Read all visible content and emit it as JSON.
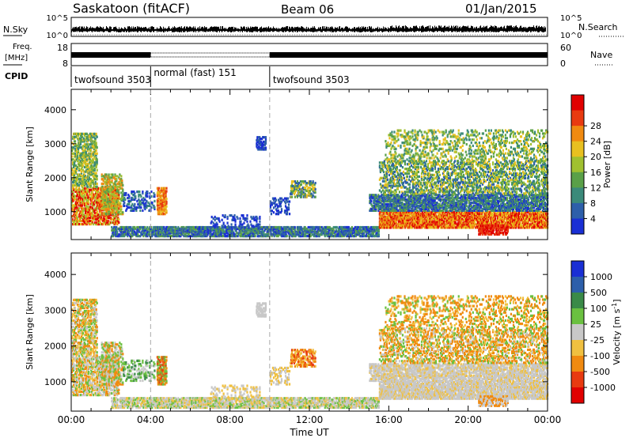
{
  "header": {
    "station": "Saskatoon (fitACF)",
    "beam": "Beam 06",
    "date": "01/Jan/2015"
  },
  "side_labels": {
    "nsky": "N.Sky",
    "nsearch": "N.Search",
    "freq_top": "Freq.",
    "freq_unit": "[MHz]",
    "nave": "Nave",
    "cpid": "CPID"
  },
  "nsky_ticks": {
    "left": [
      "10^5",
      "10^0"
    ],
    "right": [
      "10^5",
      "10^0"
    ]
  },
  "freq_ticks": {
    "left": [
      "18",
      "8"
    ],
    "right": [
      "60",
      "0"
    ]
  },
  "colors": {
    "power": [
      "#1a2fd4",
      "#2d5faa",
      "#3b8a7a",
      "#5aa048",
      "#a0c030",
      "#e8c020",
      "#f08a10",
      "#e83a10",
      "#e00000"
    ],
    "velocity": [
      "#1a2fd4",
      "#2d5faa",
      "#3a8a48",
      "#6ac040",
      "#c8c8c8",
      "#f0c040",
      "#f08a10",
      "#e83a10",
      "#e00000"
    ]
  },
  "chart_data": {
    "type": "heatmap",
    "x_ticks": [
      "00:00",
      "04:00",
      "08:00",
      "12:00",
      "16:00",
      "20:00",
      "00:00"
    ],
    "xlabel": "Time UT",
    "dashed_lines_ut": [
      4,
      10
    ],
    "cpid": [
      {
        "label": "twofsound 3503",
        "start": 0,
        "end": 4
      },
      {
        "label": "normal (fast) 151",
        "start": 4,
        "end": 10
      },
      {
        "label": "twofsound 3503",
        "start": 10,
        "end": 24
      }
    ],
    "panels": [
      {
        "name": "power",
        "ylabel": "Slant Range [km]",
        "yticks": [
          "1000",
          "2000",
          "3000",
          "4000"
        ],
        "ylim": [
          180,
          4600
        ],
        "colorbar_label": "Power [dB]",
        "colorbar_ticks": [
          "4",
          "8",
          "12",
          "16",
          "20",
          "24",
          "28"
        ]
      },
      {
        "name": "velocity",
        "ylabel": "Slant Range [km]",
        "yticks": [
          "1000",
          "2000",
          "3000",
          "4000"
        ],
        "ylim": [
          180,
          4600
        ],
        "colorbar_label": "Velocity [m s^-1]",
        "colorbar_ticks": [
          "1000",
          "500",
          "100",
          "25",
          "-25",
          "-100",
          "-500",
          "-1000"
        ]
      }
    ]
  }
}
